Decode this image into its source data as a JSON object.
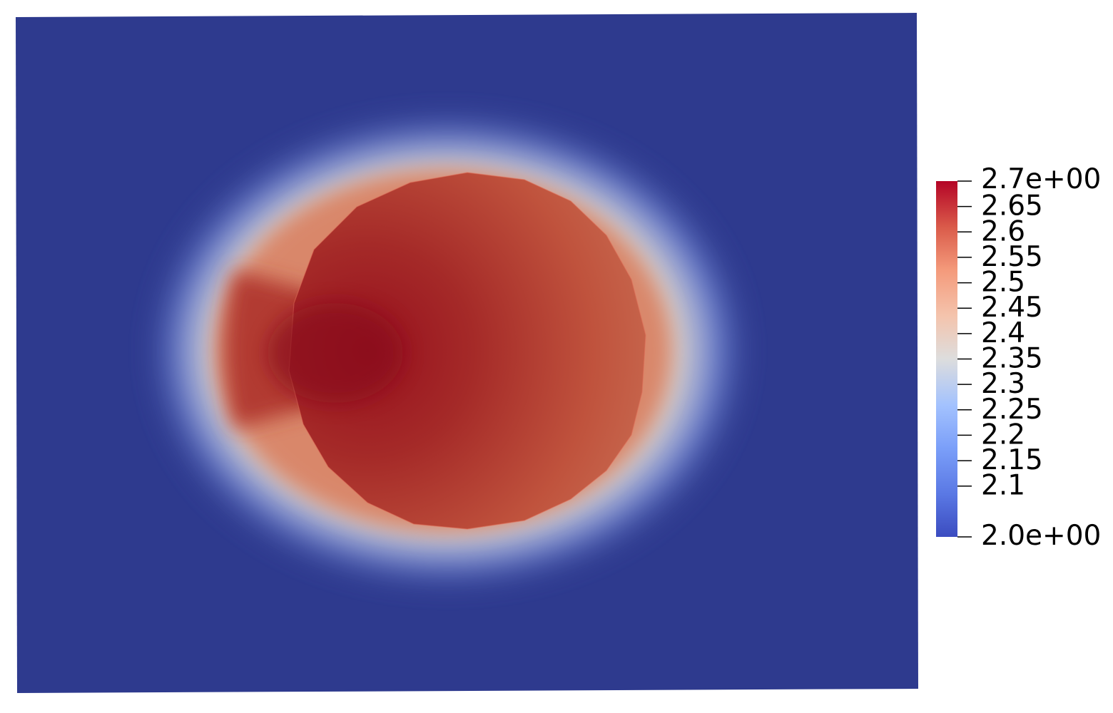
{
  "chart_data": {
    "type": "heatmap",
    "title": "",
    "xlabel": "",
    "ylabel": "",
    "colormap": "coolwarm",
    "colors": {
      "background_field": "#2e3a8e",
      "cold_end": "#3b4cc0",
      "neutral": "#dddddd",
      "warm_end": "#b40426"
    },
    "colorbar": {
      "min": 2.0,
      "max": 2.7,
      "min_label": "2.0e+00",
      "max_label": "2.7e+00",
      "orientation": "vertical",
      "placement": "right",
      "ticks": [
        {
          "value": 2.65,
          "label": "2.65"
        },
        {
          "value": 2.6,
          "label": "2.6"
        },
        {
          "value": 2.55,
          "label": "2.55"
        },
        {
          "value": 2.5,
          "label": "2.5"
        },
        {
          "value": 2.45,
          "label": "2.45"
        },
        {
          "value": 2.4,
          "label": "2.4"
        },
        {
          "value": 2.35,
          "label": "2.35"
        },
        {
          "value": 2.3,
          "label": "2.3"
        },
        {
          "value": 2.25,
          "label": "2.25"
        },
        {
          "value": 2.2,
          "label": "2.2"
        },
        {
          "value": 2.15,
          "label": "2.15"
        },
        {
          "value": 2.1,
          "label": "2.1"
        }
      ]
    },
    "field": {
      "background_value": 2.0,
      "inclusion_peak_value": 2.7,
      "inclusion_typical_value": 2.6,
      "shape": "roughly circular inclusion, hottest on its left side"
    }
  }
}
